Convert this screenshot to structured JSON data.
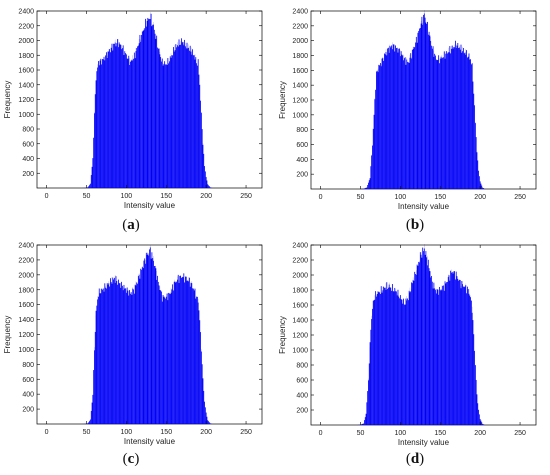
{
  "chart_data": [
    {
      "type": "bar",
      "caption_letter": "a",
      "xlabel": "Intensity value",
      "ylabel": "Frequency",
      "xlim": [
        -12,
        270
      ],
      "ylim": [
        0,
        2400
      ],
      "xticks": [
        0,
        50,
        100,
        150,
        200,
        250
      ],
      "yticks": [
        200,
        400,
        600,
        800,
        1000,
        1200,
        1400,
        1600,
        1800,
        2000,
        2200,
        2400
      ],
      "color": "#0000ff",
      "profile": [
        [
          44,
          0
        ],
        [
          48,
          3
        ],
        [
          52,
          10
        ],
        [
          55,
          60
        ],
        [
          58,
          400
        ],
        [
          60,
          1000
        ],
        [
          62,
          1500
        ],
        [
          65,
          1700
        ],
        [
          70,
          1730
        ],
        [
          75,
          1800
        ],
        [
          80,
          1880
        ],
        [
          85,
          1950
        ],
        [
          90,
          1970
        ],
        [
          95,
          1900
        ],
        [
          100,
          1800
        ],
        [
          105,
          1700
        ],
        [
          110,
          1780
        ],
        [
          115,
          1950
        ],
        [
          120,
          2100
        ],
        [
          125,
          2250
        ],
        [
          130,
          2320
        ],
        [
          135,
          2150
        ],
        [
          140,
          1900
        ],
        [
          145,
          1700
        ],
        [
          150,
          1680
        ],
        [
          155,
          1750
        ],
        [
          160,
          1880
        ],
        [
          165,
          1950
        ],
        [
          170,
          1990
        ],
        [
          175,
          1930
        ],
        [
          180,
          1880
        ],
        [
          185,
          1800
        ],
        [
          188,
          1700
        ],
        [
          190,
          1700
        ],
        [
          192,
          1400
        ],
        [
          194,
          1000
        ],
        [
          196,
          600
        ],
        [
          198,
          300
        ],
        [
          200,
          150
        ],
        [
          202,
          50
        ],
        [
          205,
          10
        ],
        [
          208,
          0
        ]
      ]
    },
    {
      "type": "bar",
      "caption_letter": "b",
      "xlabel": "Intensity value",
      "ylabel": "Frequency",
      "xlim": [
        -12,
        270
      ],
      "ylim": [
        0,
        2400
      ],
      "xticks": [
        0,
        50,
        100,
        150,
        200,
        250
      ],
      "yticks": [
        200,
        400,
        600,
        800,
        1000,
        1200,
        1400,
        1600,
        1800,
        2000,
        2200,
        2400
      ],
      "color": "#0000ff",
      "profile": [
        [
          50,
          0
        ],
        [
          54,
          5
        ],
        [
          58,
          20
        ],
        [
          62,
          150
        ],
        [
          65,
          600
        ],
        [
          68,
          1200
        ],
        [
          70,
          1550
        ],
        [
          73,
          1650
        ],
        [
          76,
          1700
        ],
        [
          80,
          1800
        ],
        [
          85,
          1880
        ],
        [
          90,
          1930
        ],
        [
          95,
          1900
        ],
        [
          100,
          1850
        ],
        [
          105,
          1750
        ],
        [
          110,
          1700
        ],
        [
          115,
          1850
        ],
        [
          120,
          2000
        ],
        [
          125,
          2200
        ],
        [
          130,
          2350
        ],
        [
          135,
          2150
        ],
        [
          140,
          1900
        ],
        [
          145,
          1750
        ],
        [
          150,
          1750
        ],
        [
          155,
          1800
        ],
        [
          160,
          1850
        ],
        [
          165,
          1900
        ],
        [
          170,
          1950
        ],
        [
          175,
          1900
        ],
        [
          180,
          1850
        ],
        [
          185,
          1800
        ],
        [
          188,
          1750
        ],
        [
          190,
          1650
        ],
        [
          192,
          1300
        ],
        [
          194,
          900
        ],
        [
          196,
          500
        ],
        [
          198,
          250
        ],
        [
          200,
          100
        ],
        [
          203,
          20
        ],
        [
          206,
          0
        ]
      ]
    },
    {
      "type": "bar",
      "caption_letter": "c",
      "xlabel": "Intensity value",
      "ylabel": "Frequency",
      "xlim": [
        -12,
        270
      ],
      "ylim": [
        0,
        2400
      ],
      "xticks": [
        0,
        50,
        100,
        150,
        200,
        250
      ],
      "yticks": [
        200,
        400,
        600,
        800,
        1000,
        1200,
        1400,
        1600,
        1800,
        2000,
        2200,
        2400
      ],
      "color": "#0000ff",
      "profile": [
        [
          44,
          0
        ],
        [
          48,
          3
        ],
        [
          52,
          10
        ],
        [
          55,
          60
        ],
        [
          58,
          400
        ],
        [
          60,
          1000
        ],
        [
          62,
          1500
        ],
        [
          65,
          1750
        ],
        [
          70,
          1800
        ],
        [
          75,
          1850
        ],
        [
          80,
          1900
        ],
        [
          85,
          1950
        ],
        [
          90,
          1900
        ],
        [
          95,
          1850
        ],
        [
          100,
          1800
        ],
        [
          105,
          1750
        ],
        [
          110,
          1800
        ],
        [
          115,
          1950
        ],
        [
          120,
          2100
        ],
        [
          125,
          2250
        ],
        [
          130,
          2330
        ],
        [
          135,
          2150
        ],
        [
          140,
          1900
        ],
        [
          145,
          1700
        ],
        [
          150,
          1700
        ],
        [
          155,
          1750
        ],
        [
          160,
          1880
        ],
        [
          165,
          1950
        ],
        [
          170,
          1980
        ],
        [
          175,
          1950
        ],
        [
          180,
          1900
        ],
        [
          185,
          1800
        ],
        [
          188,
          1700
        ],
        [
          190,
          1650
        ],
        [
          192,
          1400
        ],
        [
          194,
          1000
        ],
        [
          196,
          600
        ],
        [
          198,
          300
        ],
        [
          200,
          150
        ],
        [
          202,
          50
        ],
        [
          205,
          10
        ],
        [
          208,
          0
        ]
      ]
    },
    {
      "type": "bar",
      "caption_letter": "d",
      "xlabel": "Intensity value",
      "ylabel": "Frequency",
      "xlim": [
        -12,
        270
      ],
      "ylim": [
        0,
        2400
      ],
      "xticks": [
        0,
        50,
        100,
        150,
        200,
        250
      ],
      "yticks": [
        200,
        400,
        600,
        800,
        1000,
        1200,
        1400,
        1600,
        1800,
        2000,
        2200,
        2400
      ],
      "color": "#0000ff",
      "profile": [
        [
          46,
          0
        ],
        [
          50,
          5
        ],
        [
          54,
          20
        ],
        [
          57,
          150
        ],
        [
          60,
          600
        ],
        [
          63,
          1300
        ],
        [
          66,
          1650
        ],
        [
          70,
          1750
        ],
        [
          75,
          1780
        ],
        [
          80,
          1830
        ],
        [
          85,
          1850
        ],
        [
          90,
          1820
        ],
        [
          95,
          1780
        ],
        [
          100,
          1700
        ],
        [
          105,
          1620
        ],
        [
          110,
          1700
        ],
        [
          115,
          1900
        ],
        [
          120,
          2050
        ],
        [
          125,
          2250
        ],
        [
          130,
          2350
        ],
        [
          135,
          2150
        ],
        [
          140,
          1900
        ],
        [
          145,
          1780
        ],
        [
          150,
          1800
        ],
        [
          155,
          1850
        ],
        [
          160,
          1950
        ],
        [
          165,
          2050
        ],
        [
          170,
          2000
        ],
        [
          175,
          1900
        ],
        [
          180,
          1850
        ],
        [
          185,
          1800
        ],
        [
          188,
          1700
        ],
        [
          190,
          1550
        ],
        [
          192,
          1200
        ],
        [
          194,
          800
        ],
        [
          196,
          400
        ],
        [
          198,
          200
        ],
        [
          200,
          80
        ],
        [
          203,
          15
        ],
        [
          206,
          0
        ]
      ]
    }
  ]
}
